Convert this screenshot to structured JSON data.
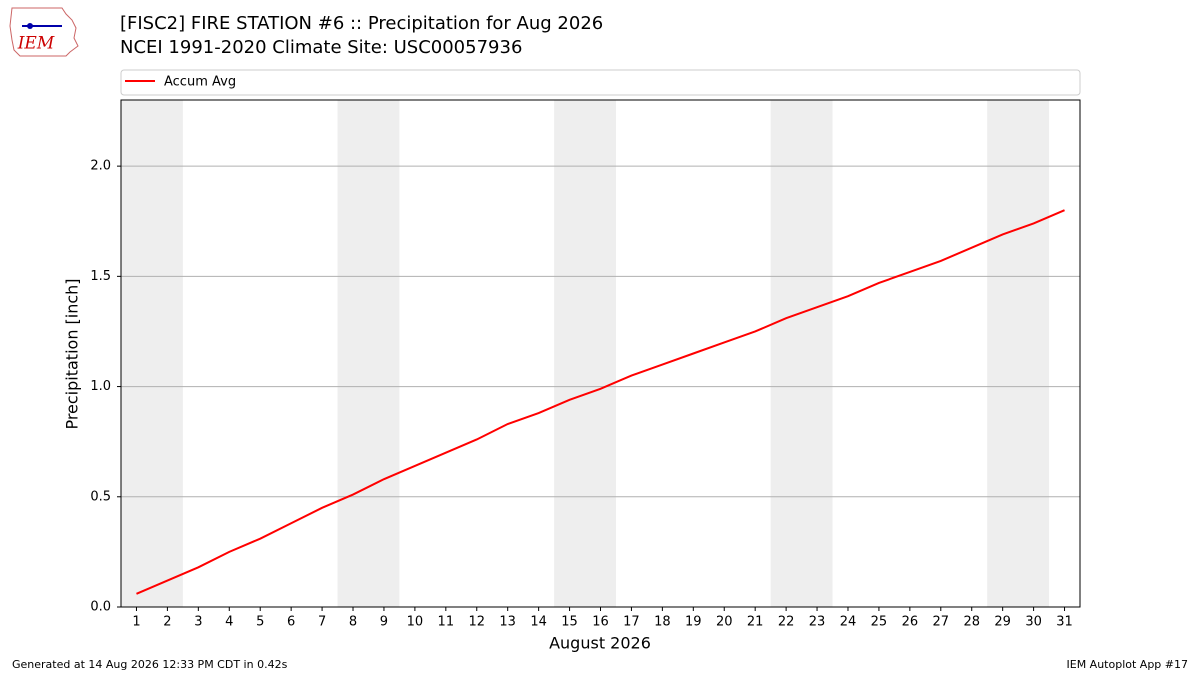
{
  "chart_data": {
    "type": "line",
    "title": "[FISC2] FIRE STATION #6 :: Precipitation for Aug 2026",
    "subtitle": "NCEI 1991-2020 Climate Site: USC00057936",
    "xlabel": "August 2026",
    "ylabel": "Precipitation [inch]",
    "x": [
      1,
      2,
      3,
      4,
      5,
      6,
      7,
      8,
      9,
      10,
      11,
      12,
      13,
      14,
      15,
      16,
      17,
      18,
      19,
      20,
      21,
      22,
      23,
      24,
      25,
      26,
      27,
      28,
      29,
      30,
      31
    ],
    "series": [
      {
        "name": "Accum Avg",
        "color": "#ff0000",
        "values": [
          0.06,
          0.12,
          0.18,
          0.25,
          0.31,
          0.38,
          0.45,
          0.51,
          0.58,
          0.64,
          0.7,
          0.76,
          0.83,
          0.88,
          0.94,
          0.99,
          1.05,
          1.1,
          1.15,
          1.2,
          1.25,
          1.31,
          1.36,
          1.41,
          1.47,
          1.52,
          1.57,
          1.63,
          1.69,
          1.74,
          1.8
        ]
      }
    ],
    "weekend_bands": [
      [
        0.5,
        2.5
      ],
      [
        7.5,
        9.5
      ],
      [
        14.5,
        16.5
      ],
      [
        21.5,
        23.5
      ],
      [
        28.5,
        30.5
      ]
    ],
    "band_color": "#eeeeee",
    "xlim": [
      0.5,
      31.5
    ],
    "xticks": [
      1,
      2,
      3,
      4,
      5,
      6,
      7,
      8,
      9,
      10,
      11,
      12,
      13,
      14,
      15,
      16,
      17,
      18,
      19,
      20,
      21,
      22,
      23,
      24,
      25,
      26,
      27,
      28,
      29,
      30,
      31
    ],
    "ylim": [
      0,
      2.3
    ],
    "yticks": [
      {
        "value": 0,
        "label": "0.0"
      },
      0.5,
      {
        "value": 1,
        "label": "1.0"
      },
      1.5,
      {
        "value": 2,
        "label": "2.0"
      }
    ],
    "grid": true,
    "legend": "top"
  },
  "logo_text": "IEM",
  "footer": {
    "left": "Generated at 14 Aug 2026 12:33 PM CDT in 0.42s",
    "right": "IEM Autoplot App #17"
  }
}
